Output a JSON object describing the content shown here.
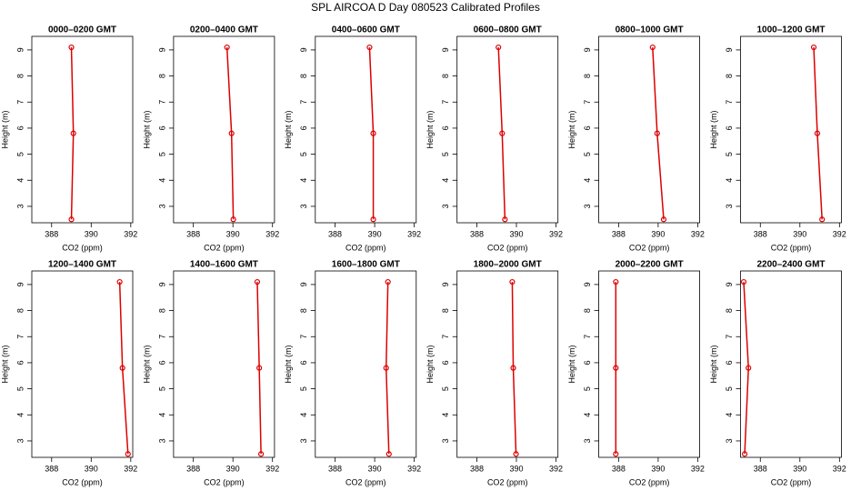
{
  "title": "SPL AIRCOA D  Day 080523  Calibrated Profiles",
  "chart_data": [
    {
      "type": "line",
      "title": "0000–0200 GMT",
      "xlabel": "CO2 (ppm)",
      "ylabel": "Height (m)",
      "color": "#dd0000",
      "x": [
        389.0,
        389.1,
        389.0
      ],
      "y": [
        9.1,
        5.8,
        2.5
      ],
      "xlim": [
        387,
        392.1
      ],
      "ylim": [
        2.37,
        9.52
      ],
      "xticks": [
        388,
        390,
        392
      ],
      "yticks": [
        3,
        4,
        5,
        6,
        7,
        8,
        9
      ]
    },
    {
      "type": "line",
      "title": "0200–0400 GMT",
      "xlabel": "CO2 (ppm)",
      "ylabel": "Height (m)",
      "color": "#dd0000",
      "x": [
        389.7,
        389.93,
        390.02
      ],
      "y": [
        9.1,
        5.8,
        2.5
      ],
      "xlim": [
        387,
        392.1
      ],
      "ylim": [
        2.37,
        9.52
      ],
      "xticks": [
        388,
        390,
        392
      ],
      "yticks": [
        3,
        4,
        5,
        6,
        7,
        8,
        9
      ]
    },
    {
      "type": "line",
      "title": "0400–0600 GMT",
      "xlabel": "CO2 (ppm)",
      "ylabel": "Height (m)",
      "color": "#dd0000",
      "x": [
        389.74,
        389.93,
        389.93
      ],
      "y": [
        9.1,
        5.8,
        2.5
      ],
      "xlim": [
        387,
        392.1
      ],
      "ylim": [
        2.37,
        9.52
      ],
      "xticks": [
        388,
        390,
        392
      ],
      "yticks": [
        3,
        4,
        5,
        6,
        7,
        8,
        9
      ]
    },
    {
      "type": "line",
      "title": "0600–0800 GMT",
      "xlabel": "CO2 (ppm)",
      "ylabel": "Height (m)",
      "color": "#dd0000",
      "x": [
        389.09,
        389.28,
        389.42
      ],
      "y": [
        9.1,
        5.8,
        2.5
      ],
      "xlim": [
        387,
        392.1
      ],
      "ylim": [
        2.37,
        9.52
      ],
      "xticks": [
        388,
        390,
        392
      ],
      "yticks": [
        3,
        4,
        5,
        6,
        7,
        8,
        9
      ]
    },
    {
      "type": "line",
      "title": "0800–1000 GMT",
      "xlabel": "CO2 (ppm)",
      "ylabel": "Height (m)",
      "color": "#dd0000",
      "x": [
        389.72,
        389.95,
        390.28
      ],
      "y": [
        9.1,
        5.8,
        2.5
      ],
      "xlim": [
        387,
        392.1
      ],
      "ylim": [
        2.37,
        9.52
      ],
      "xticks": [
        388,
        390,
        392
      ],
      "yticks": [
        3,
        4,
        5,
        6,
        7,
        8,
        9
      ]
    },
    {
      "type": "line",
      "title": "1000–1200 GMT",
      "xlabel": "CO2 (ppm)",
      "ylabel": "Height (m)",
      "color": "#dd0000",
      "x": [
        390.7,
        390.88,
        391.12
      ],
      "y": [
        9.1,
        5.8,
        2.5
      ],
      "xlim": [
        387,
        392.1
      ],
      "ylim": [
        2.37,
        9.52
      ],
      "xticks": [
        388,
        390,
        392
      ],
      "yticks": [
        3,
        4,
        5,
        6,
        7,
        8,
        9
      ]
    },
    {
      "type": "line",
      "title": "1200–1400 GMT",
      "xlabel": "CO2 (ppm)",
      "ylabel": "Height (m)",
      "color": "#dd0000",
      "x": [
        391.44,
        391.58,
        391.86
      ],
      "y": [
        9.1,
        5.8,
        2.5
      ],
      "xlim": [
        387,
        392.1
      ],
      "ylim": [
        2.37,
        9.52
      ],
      "xticks": [
        388,
        390,
        392
      ],
      "yticks": [
        3,
        4,
        5,
        6,
        7,
        8,
        9
      ]
    },
    {
      "type": "line",
      "title": "1400–1600 GMT",
      "xlabel": "CO2 (ppm)",
      "ylabel": "Height (m)",
      "color": "#dd0000",
      "x": [
        391.23,
        391.33,
        391.42
      ],
      "y": [
        9.1,
        5.8,
        2.5
      ],
      "xlim": [
        387,
        392.1
      ],
      "ylim": [
        2.37,
        9.52
      ],
      "xticks": [
        388,
        390,
        392
      ],
      "yticks": [
        3,
        4,
        5,
        6,
        7,
        8,
        9
      ]
    },
    {
      "type": "line",
      "title": "1600–1800 GMT",
      "xlabel": "CO2 (ppm)",
      "ylabel": "Height (m)",
      "color": "#dd0000",
      "x": [
        390.67,
        390.58,
        390.72
      ],
      "y": [
        9.1,
        5.8,
        2.5
      ],
      "xlim": [
        387,
        392.1
      ],
      "ylim": [
        2.37,
        9.52
      ],
      "xticks": [
        388,
        390,
        392
      ],
      "yticks": [
        3,
        4,
        5,
        6,
        7,
        8,
        9
      ]
    },
    {
      "type": "line",
      "title": "1800–2000 GMT",
      "xlabel": "CO2 (ppm)",
      "ylabel": "Height (m)",
      "color": "#dd0000",
      "x": [
        389.79,
        389.84,
        389.98
      ],
      "y": [
        9.1,
        5.8,
        2.5
      ],
      "xlim": [
        387,
        392.1
      ],
      "ylim": [
        2.37,
        9.52
      ],
      "xticks": [
        388,
        390,
        392
      ],
      "yticks": [
        3,
        4,
        5,
        6,
        7,
        8,
        9
      ]
    },
    {
      "type": "line",
      "title": "2000–2200 GMT",
      "xlabel": "CO2 (ppm)",
      "ylabel": "Height (m)",
      "color": "#dd0000",
      "x": [
        387.86,
        387.86,
        387.86
      ],
      "y": [
        9.1,
        5.8,
        2.5
      ],
      "xlim": [
        387,
        392.1
      ],
      "ylim": [
        2.37,
        9.52
      ],
      "xticks": [
        388,
        390,
        392
      ],
      "yticks": [
        3,
        4,
        5,
        6,
        7,
        8,
        9
      ]
    },
    {
      "type": "line",
      "title": "2200–2400 GMT",
      "xlabel": "CO2 (ppm)",
      "ylabel": "Height (m)",
      "color": "#dd0000",
      "x": [
        387.16,
        387.4,
        387.21
      ],
      "y": [
        9.1,
        5.8,
        2.5
      ],
      "xlim": [
        387,
        392.1
      ],
      "ylim": [
        2.37,
        9.52
      ],
      "xticks": [
        388,
        390,
        392
      ],
      "yticks": [
        3,
        4,
        5,
        6,
        7,
        8,
        9
      ]
    }
  ]
}
